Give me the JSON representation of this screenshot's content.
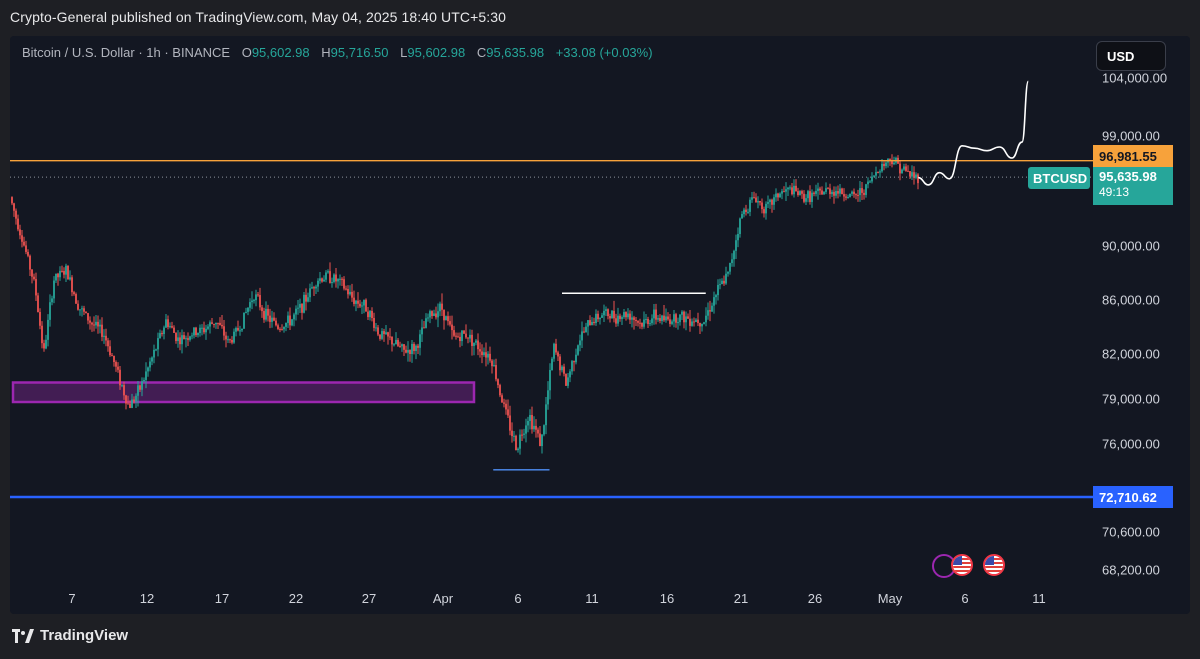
{
  "publish_bar": "Crypto-General published on TradingView.com, May 04, 2025 18:40 UTC+5:30",
  "footer_brand": "TradingView",
  "currency_button": "USD",
  "legend": {
    "symbol": "Bitcoin / U.S. Dollar · 1h · BINANCE",
    "open_label": "O",
    "open": "95,602.98",
    "high_label": "H",
    "high": "95,716.50",
    "low_label": "L",
    "low": "95,602.98",
    "close_label": "C",
    "close": "95,635.98",
    "change": "+33.08 (+0.03%)"
  },
  "price_tags": {
    "resistance": "96,981.55",
    "ticker": "BTCUSD",
    "last_price": "95,635.98",
    "countdown": "49:13",
    "support": "72,710.62"
  },
  "colors": {
    "up": "#26a69a",
    "down": "#ef5350",
    "resistance": "#f7a23b",
    "support": "#2962ff",
    "zone": "#9c27b0",
    "projection": "#ffffff"
  },
  "chart_data": {
    "type": "candlestick",
    "title": "",
    "xlabel": "",
    "ylabel": "",
    "x_ticks": [
      "7",
      "12",
      "17",
      "22",
      "27",
      "Apr",
      "6",
      "11",
      "16",
      "21",
      "26",
      "May",
      "6",
      "11"
    ],
    "y_ticks": [
      "104,000.00",
      "99,000.00",
      "90,000.00",
      "86,000.00",
      "82,000.00",
      "79,000.00",
      "76,000.00",
      "72,710.62",
      "70,600.00",
      "68,200.00"
    ],
    "ylim": [
      67000,
      106000
    ],
    "price_path": [
      [
        0,
        94000
      ],
      [
        1,
        90500
      ],
      [
        2,
        87000
      ],
      [
        2.7,
        82000
      ],
      [
        3.5,
        87500
      ],
      [
        4.5,
        88200
      ],
      [
        5.5,
        85500
      ],
      [
        6.5,
        84300
      ],
      [
        7.5,
        83500
      ],
      [
        8.5,
        81000
      ],
      [
        9.5,
        78500
      ],
      [
        10.3,
        79500
      ],
      [
        11.5,
        82000
      ],
      [
        12.5,
        84500
      ],
      [
        13.5,
        83000
      ],
      [
        14.5,
        83500
      ],
      [
        15.5,
        83800
      ],
      [
        16.5,
        84500
      ],
      [
        17.5,
        82800
      ],
      [
        18.5,
        84200
      ],
      [
        19.5,
        86500
      ],
      [
        20.5,
        84800
      ],
      [
        21.5,
        84000
      ],
      [
        22.5,
        84500
      ],
      [
        23.5,
        85800
      ],
      [
        24.5,
        87500
      ],
      [
        25.5,
        87800
      ],
      [
        26.5,
        87200
      ],
      [
        27.5,
        86000
      ],
      [
        28.5,
        85500
      ],
      [
        29.5,
        83500
      ],
      [
        30.5,
        83000
      ],
      [
        31.5,
        82200
      ],
      [
        32.5,
        82500
      ],
      [
        33.5,
        84800
      ],
      [
        34.5,
        85500
      ],
      [
        35.5,
        83200
      ],
      [
        36.5,
        83500
      ],
      [
        37.5,
        82500
      ],
      [
        38.5,
        81800
      ],
      [
        39.5,
        78500
      ],
      [
        40.5,
        75800
      ],
      [
        41.5,
        78000
      ],
      [
        42.5,
        76000
      ],
      [
        43.5,
        82500
      ],
      [
        44.5,
        80000
      ],
      [
        45.5,
        83000
      ],
      [
        46.5,
        84500
      ],
      [
        47.5,
        85000
      ],
      [
        48.5,
        84800
      ],
      [
        49.5,
        85000
      ],
      [
        50.5,
        84200
      ],
      [
        51.5,
        84800
      ],
      [
        52.5,
        84500
      ],
      [
        53.5,
        84800
      ],
      [
        54.5,
        84600
      ],
      [
        55.5,
        84500
      ],
      [
        56.5,
        86500
      ],
      [
        57.5,
        88000
      ],
      [
        58.5,
        92500
      ],
      [
        59.5,
        94000
      ],
      [
        60.5,
        93000
      ],
      [
        61.5,
        94300
      ],
      [
        62.5,
        94600
      ],
      [
        63.5,
        94000
      ],
      [
        64.5,
        94200
      ],
      [
        65.5,
        94600
      ],
      [
        66.5,
        94400
      ],
      [
        67.5,
        94000
      ],
      [
        68.5,
        94800
      ],
      [
        69.5,
        96400
      ],
      [
        70.5,
        97200
      ],
      [
        71.5,
        96200
      ],
      [
        72.5,
        95600
      ]
    ],
    "levels": [
      {
        "name": "resistance",
        "value": 96981.55
      },
      {
        "name": "support",
        "value": 72710.62
      }
    ],
    "zone": {
      "x_from": 0,
      "x_to": 34,
      "y_low": 78800,
      "y_high": 80100
    },
    "swing_lines": [
      {
        "x_from": 38.5,
        "x_to": 43,
        "value": 74400
      },
      {
        "x_from": 44,
        "x_to": 55.5,
        "value": 86500
      }
    ],
    "projection": [
      [
        72.5,
        95600
      ],
      [
        73.3,
        95000
      ],
      [
        74.2,
        96000
      ],
      [
        75,
        95500
      ],
      [
        76,
        98200
      ],
      [
        77,
        98000
      ],
      [
        78,
        97800
      ],
      [
        79,
        98100
      ],
      [
        80,
        97200
      ],
      [
        80.8,
        98500
      ],
      [
        81.3,
        103700
      ]
    ]
  }
}
